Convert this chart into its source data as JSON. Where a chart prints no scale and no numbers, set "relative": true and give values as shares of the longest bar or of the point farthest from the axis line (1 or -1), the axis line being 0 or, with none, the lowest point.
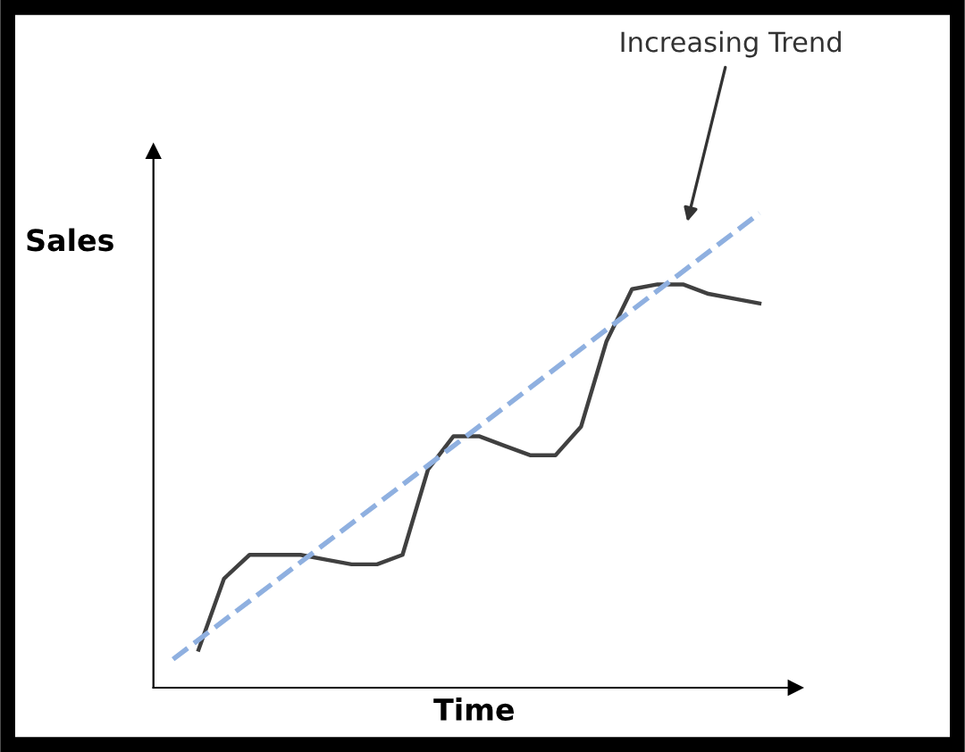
{
  "chart_data": {
    "type": "line",
    "relative": true,
    "xlabel": "Time",
    "ylabel": "Sales",
    "categories": [
      null,
      null,
      null,
      null,
      null,
      null,
      null,
      null,
      null,
      null,
      null,
      null,
      null,
      null,
      null,
      null,
      null,
      null,
      null,
      null,
      null,
      null,
      null,
      null
    ],
    "series": [
      {
        "color": "#404040",
        "line_style": "solid",
        "values": [
          null,
          0.08,
          0.23,
          0.28,
          0.28,
          0.28,
          0.27,
          0.26,
          0.26,
          0.28,
          0.46,
          0.53,
          0.53,
          0.51,
          0.49,
          0.49,
          0.55,
          0.73,
          0.84,
          0.85,
          0.85,
          0.83,
          0.82,
          0.81
        ]
      },
      {
        "color": "#8fb0e0",
        "line_style": "dashed",
        "values": [
          0.06,
          null,
          null,
          null,
          null,
          null,
          null,
          null,
          null,
          null,
          null,
          null,
          null,
          null,
          null,
          null,
          null,
          null,
          null,
          null,
          null,
          null,
          null,
          1.0
        ]
      }
    ],
    "annotations": [
      "Increasing Trend"
    ],
    "legend": false,
    "marker": "none"
  }
}
